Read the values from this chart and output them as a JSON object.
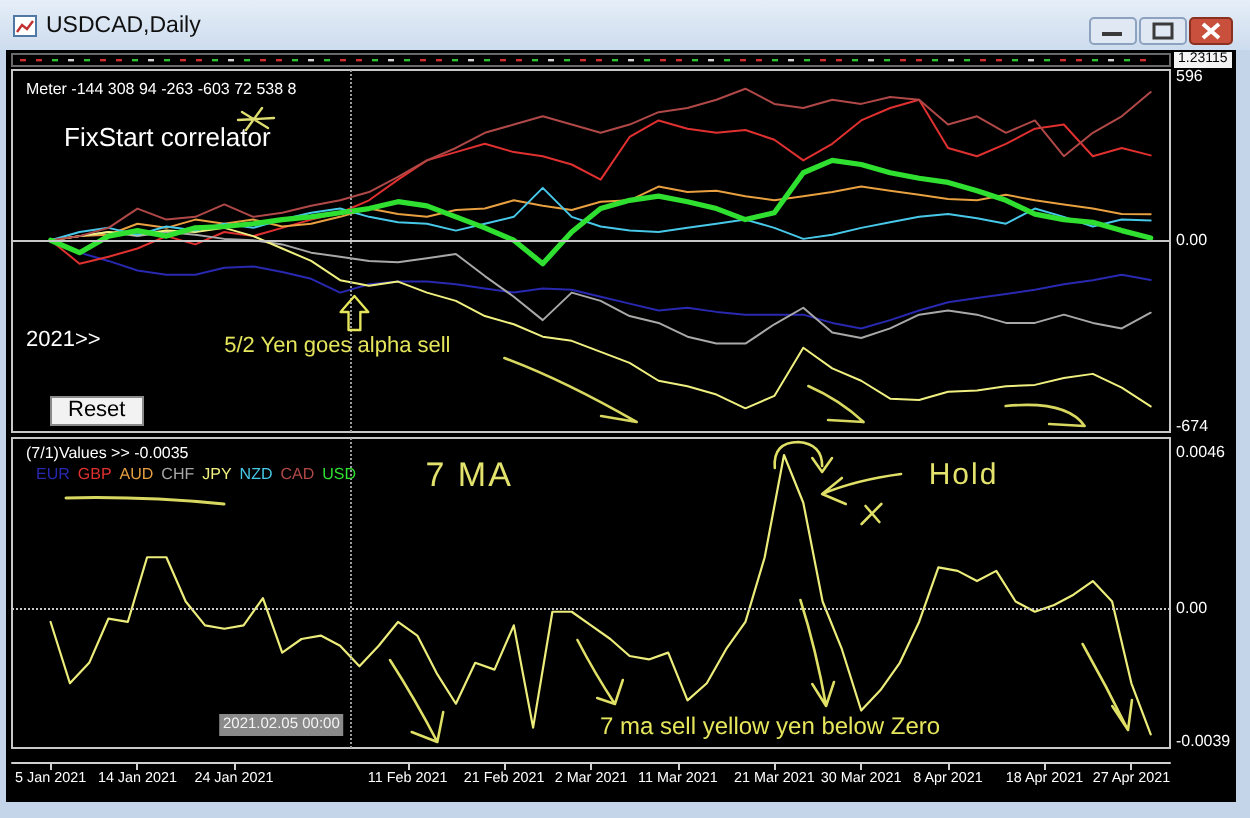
{
  "chart_data": [
    {
      "type": "line",
      "title": "USDCAD,Daily",
      "x": [
        "2021-01-05",
        "2021-01-08",
        "2021-01-11",
        "2021-01-14",
        "2021-01-17",
        "2021-01-20",
        "2021-01-23",
        "2021-01-26",
        "2021-01-29",
        "2021-02-01",
        "2021-02-04",
        "2021-02-07",
        "2021-02-10",
        "2021-02-13",
        "2021-02-16",
        "2021-02-19",
        "2021-02-22",
        "2021-02-25",
        "2021-02-28",
        "2021-03-03",
        "2021-03-06",
        "2021-03-09",
        "2021-03-12",
        "2021-03-15",
        "2021-03-18",
        "2021-03-21",
        "2021-03-24",
        "2021-03-27",
        "2021-03-30",
        "2021-04-02",
        "2021-04-05",
        "2021-04-08",
        "2021-04-11",
        "2021-04-14",
        "2021-04-17",
        "2021-04-20",
        "2021-04-23",
        "2021-04-26",
        "2021-04-29"
      ],
      "xlim": [
        "2021-01-01",
        "2021-05-01"
      ],
      "ylim": [
        -696,
        618
      ],
      "yticks": [
        -674,
        {
          "value": 0,
          "label": "0.00"
        },
        596
      ],
      "tick_labels": "y",
      "legend": "bottom left",
      "series": [
        {
          "name": "EUR",
          "color": "#2828b0",
          "values": [
            0,
            -45,
            -75,
            -110,
            -125,
            -125,
            -100,
            -95,
            -115,
            -140,
            -190,
            -160,
            -150,
            -150,
            -160,
            -175,
            -190,
            -175,
            -180,
            -205,
            -230,
            -255,
            -245,
            -260,
            -270,
            -270,
            -270,
            -300,
            -320,
            -290,
            -255,
            -225,
            -210,
            -195,
            -180,
            -160,
            -145,
            -125,
            -144
          ]
        },
        {
          "name": "GBP",
          "color": "#e03030",
          "values": [
            0,
            -85,
            -60,
            -30,
            15,
            -15,
            30,
            15,
            45,
            75,
            100,
            145,
            220,
            290,
            320,
            350,
            320,
            305,
            275,
            220,
            375,
            435,
            405,
            390,
            400,
            365,
            290,
            350,
            435,
            480,
            510,
            335,
            305,
            350,
            405,
            420,
            305,
            335,
            308
          ]
        },
        {
          "name": "AUD",
          "color": "#e8a040",
          "values": [
            0,
            15,
            20,
            60,
            45,
            75,
            60,
            75,
            50,
            60,
            85,
            115,
            95,
            85,
            110,
            115,
            145,
            125,
            110,
            140,
            145,
            195,
            175,
            180,
            160,
            145,
            160,
            175,
            195,
            180,
            165,
            150,
            145,
            165,
            145,
            130,
            115,
            95,
            94
          ]
        },
        {
          "name": "CHF",
          "color": "#a8a8a8",
          "values": [
            0,
            15,
            30,
            15,
            30,
            20,
            5,
            0,
            -15,
            -45,
            -60,
            -75,
            -80,
            -65,
            -50,
            -130,
            -205,
            -290,
            -190,
            -220,
            -275,
            -300,
            -350,
            -375,
            -375,
            -305,
            -245,
            -335,
            -355,
            -320,
            -270,
            -255,
            -270,
            -300,
            -300,
            -270,
            -300,
            -320,
            -263
          ]
        },
        {
          "name": "JPY",
          "color": "#f0f080",
          "values": [
            0,
            15,
            30,
            20,
            35,
            30,
            45,
            15,
            -30,
            -75,
            -145,
            -165,
            -150,
            -190,
            -220,
            -275,
            -305,
            -350,
            -365,
            -405,
            -445,
            -510,
            -530,
            -560,
            -610,
            -565,
            -390,
            -465,
            -510,
            -575,
            -580,
            -550,
            -545,
            -530,
            -525,
            -500,
            -485,
            -535,
            -603
          ]
        },
        {
          "name": "NZD",
          "color": "#48c8e8",
          "values": [
            0,
            30,
            45,
            20,
            50,
            35,
            60,
            45,
            75,
            100,
            115,
            85,
            65,
            60,
            35,
            60,
            85,
            190,
            85,
            50,
            35,
            30,
            45,
            60,
            75,
            45,
            5,
            20,
            45,
            65,
            85,
            95,
            80,
            60,
            115,
            85,
            50,
            75,
            72
          ]
        },
        {
          "name": "CAD",
          "color": "#b04848",
          "values": [
            0,
            15,
            45,
            115,
            75,
            85,
            130,
            85,
            100,
            125,
            145,
            175,
            230,
            290,
            335,
            390,
            420,
            450,
            420,
            390,
            420,
            465,
            480,
            510,
            550,
            495,
            480,
            510,
            495,
            520,
            510,
            420,
            450,
            390,
            435,
            305,
            390,
            450,
            538
          ]
        },
        {
          "name": "USD",
          "color": "#30e030",
          "values": [
            0,
            -45,
            15,
            35,
            15,
            45,
            50,
            60,
            75,
            85,
            100,
            115,
            140,
            125,
            85,
            45,
            0,
            -85,
            30,
            115,
            145,
            160,
            140,
            115,
            75,
            100,
            245,
            290,
            275,
            245,
            225,
            210,
            180,
            145,
            95,
            75,
            65,
            35,
            8
          ]
        }
      ],
      "ref_lines": [
        {
          "axis": "y",
          "value": 0,
          "color": "#c8c8c8",
          "line_style": "solid"
        },
        {
          "axis": "x",
          "value": "2021-02-05",
          "color": "#9a9a9a",
          "line_style": "dotted"
        }
      ],
      "annotations": [
        "Meter -144 308 94 -263 -603 72 538 8",
        "FixStart correlator",
        "2021>>",
        "5/2 Yen goes alpha sell",
        "Reset",
        "1.23115"
      ]
    },
    {
      "type": "line",
      "title": "(7/1)Values >> -0.0035",
      "x": [
        "2021-01-05",
        "2021-01-07",
        "2021-01-09",
        "2021-01-11",
        "2021-01-13",
        "2021-01-15",
        "2021-01-17",
        "2021-01-19",
        "2021-01-21",
        "2021-01-23",
        "2021-01-25",
        "2021-01-27",
        "2021-01-29",
        "2021-01-31",
        "2021-02-02",
        "2021-02-04",
        "2021-02-06",
        "2021-02-08",
        "2021-02-10",
        "2021-02-12",
        "2021-02-14",
        "2021-02-16",
        "2021-02-18",
        "2021-02-20",
        "2021-02-22",
        "2021-02-24",
        "2021-02-26",
        "2021-02-28",
        "2021-03-02",
        "2021-03-04",
        "2021-03-06",
        "2021-03-08",
        "2021-03-10",
        "2021-03-12",
        "2021-03-14",
        "2021-03-16",
        "2021-03-18",
        "2021-03-20",
        "2021-03-22",
        "2021-03-24",
        "2021-03-26",
        "2021-03-28",
        "2021-03-30",
        "2021-04-01",
        "2021-04-03",
        "2021-04-05",
        "2021-04-07",
        "2021-04-09",
        "2021-04-11",
        "2021-04-13",
        "2021-04-15",
        "2021-04-17",
        "2021-04-19",
        "2021-04-21",
        "2021-04-23",
        "2021-04-25",
        "2021-04-27",
        "2021-04-29"
      ],
      "xlim": [
        "2021-01-01",
        "2021-05-01"
      ],
      "xticks": [
        {
          "value": "2021-01-05",
          "label": "5 Jan 2021"
        },
        {
          "value": "2021-01-14",
          "label": "14 Jan 2021"
        },
        {
          "value": "2021-01-24",
          "label": "24 Jan 2021"
        },
        {
          "value": "2021-02-11",
          "label": "11 Feb 2021"
        },
        {
          "value": "2021-02-21",
          "label": "21 Feb 2021"
        },
        {
          "value": "2021-03-02",
          "label": "2 Mar 2021"
        },
        {
          "value": "2021-03-11",
          "label": "11 Mar 2021"
        },
        {
          "value": "2021-03-21",
          "label": "21 Mar 2021"
        },
        {
          "value": "2021-03-30",
          "label": "30 Mar 2021"
        },
        {
          "value": "2021-04-08",
          "label": "8 Apr 2021"
        },
        {
          "value": "2021-04-18",
          "label": "18 Apr 2021"
        },
        {
          "value": "2021-04-27",
          "label": "27 Apr 2021"
        }
      ],
      "ylim": [
        -0.0041,
        0.005
      ],
      "yticks": [
        -0.0039,
        {
          "value": 0,
          "label": "0.00"
        },
        0.0046
      ],
      "series": [
        {
          "color": "#ecec7a",
          "values": [
            -0.0004,
            -0.0022,
            -0.0016,
            -0.0003,
            -0.0004,
            0.0015,
            0.0015,
            0.0002,
            -0.0005,
            -0.0006,
            -0.0005,
            0.0003,
            -0.0013,
            -0.0009,
            -0.0008,
            -0.0011,
            -0.0017,
            -0.0011,
            -0.0004,
            -0.0008,
            -0.0019,
            -0.0028,
            -0.0016,
            -0.0018,
            -0.0005,
            -0.0035,
            -0.0001,
            -0.0001,
            -0.0005,
            -0.0009,
            -0.0014,
            -0.0015,
            -0.0013,
            -0.0027,
            -0.0022,
            -0.0012,
            -0.0004,
            0.0015,
            0.0045,
            0.0031,
            0.0002,
            -0.0012,
            -0.003,
            -0.0024,
            -0.0016,
            -0.0004,
            0.0012,
            0.0011,
            0.0008,
            0.0011,
            0.0002,
            -0.0001,
            0.0001,
            0.0004,
            0.0008,
            0.0002,
            -0.0022,
            -0.0037
          ]
        }
      ],
      "ref_lines": [
        {
          "axis": "y",
          "value": 0,
          "color": "#c8c8c8",
          "line_style": "dotted"
        },
        {
          "axis": "x",
          "value": "2021-02-05",
          "label": "2021.02.05 00:00",
          "color": "#9a9a9a",
          "line_style": "dotted"
        }
      ],
      "annotations": [
        "7 MA",
        "Hold",
        "7 ma sell yellow yen below Zero"
      ]
    }
  ]
}
